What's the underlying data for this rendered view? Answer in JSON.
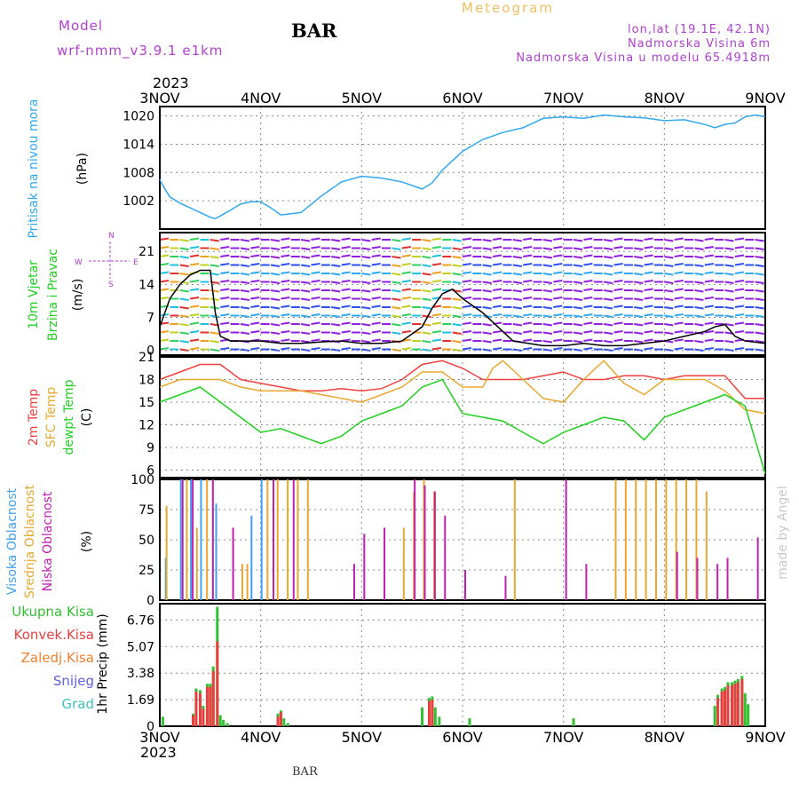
{
  "header": {
    "model_label": "Model",
    "model_name": "wrf-nmm_v3.9.1 e1km",
    "station": "BAR",
    "product": "Meteogram",
    "coords": "lon,lat (19.1E, 42.1N)",
    "elevation": "Nadmorska Visina 6m",
    "model_elevation": "Nadmorska Visina u modelu 65.4918m",
    "year_top": "2023",
    "year_bottom": "2023",
    "footer_station": "BAR",
    "credit": "made by Angel"
  },
  "colors": {
    "pressure": "#30a8f0",
    "t2m": "#f04040",
    "sfc": "#e8a830",
    "dewpt": "#20d020",
    "high_cloud": "#40a0f0",
    "mid_cloud": "#e8a830",
    "low_cloud": "#c020b0",
    "total_precip": "#30c030",
    "conv_precip": "#e84040",
    "frozen": "#f08030",
    "snow": "#6060e0",
    "grad": "#40c0c0",
    "header": "#b040d0"
  },
  "chart_data": [
    {
      "type": "line",
      "title": "Pritisak na nivou mora",
      "ylabel": "(hPa)",
      "yticks": [
        "1020",
        "1014",
        "1008",
        "1002"
      ],
      "ylim": [
        996,
        1022
      ],
      "x_days": [
        "3NOV",
        "4NOV",
        "5NOV",
        "6NOV",
        "7NOV",
        "8NOV",
        "9NOV"
      ],
      "series": [
        {
          "x": [
            0,
            0.05,
            0.1,
            0.2,
            0.3,
            0.4,
            0.5,
            0.55,
            0.7,
            0.8,
            0.9,
            1.0,
            1.1,
            1.2,
            1.4,
            1.6,
            1.8,
            2.0,
            2.2,
            2.4,
            2.6,
            2.7,
            2.8,
            2.9,
            3.0,
            3.2,
            3.4,
            3.6,
            3.8,
            4.0,
            4.2,
            4.4,
            4.6,
            4.8,
            5.0,
            5.2,
            5.4,
            5.5,
            5.6,
            5.7,
            5.8,
            5.9,
            6.0
          ],
          "y": [
            1006.5,
            1004.5,
            1002.8,
            1001.5,
            1000.5,
            999.5,
            998.5,
            998.2,
            1000,
            1001.3,
            1001.8,
            1001.8,
            1000.5,
            999,
            999.5,
            1003,
            1006,
            1007.2,
            1006.8,
            1006,
            1004.5,
            1005.8,
            1008.5,
            1010.5,
            1012.5,
            1015,
            1016.5,
            1017.5,
            1019.5,
            1019.8,
            1019.5,
            1020.2,
            1019.8,
            1019.6,
            1019,
            1019.2,
            1018.2,
            1017.5,
            1018.2,
            1018.5,
            1019.8,
            1020.2,
            1019.8
          ]
        }
      ]
    },
    {
      "type": "line",
      "title": "10m Vjetar",
      "subtitle": "Brzina i Pravac",
      "ylabel": "(m/s)",
      "compass": [
        "N",
        "W",
        "E",
        "S"
      ],
      "yticks": [
        "21",
        "14",
        "7",
        "0"
      ],
      "ylim": [
        -1,
        25
      ],
      "series": [
        {
          "x": [
            0,
            0.1,
            0.2,
            0.3,
            0.4,
            0.5,
            0.55,
            0.6,
            0.7,
            0.8,
            1.0,
            1.2,
            1.4,
            1.6,
            1.8,
            2.0,
            2.2,
            2.4,
            2.6,
            2.7,
            2.8,
            2.9,
            3.0,
            3.2,
            3.5,
            3.8,
            4.0,
            4.2,
            4.4,
            4.6,
            4.8,
            5.0,
            5.2,
            5.4,
            5.5,
            5.6,
            5.7,
            5.8,
            6.0
          ],
          "y": [
            5,
            11,
            14,
            16,
            17,
            17,
            8,
            3,
            2,
            2,
            2,
            1.5,
            1.5,
            1.8,
            2,
            1.5,
            1.5,
            2,
            5,
            9,
            12,
            13,
            11,
            8,
            2,
            1,
            1,
            1.5,
            1,
            1,
            1.5,
            2,
            3,
            4,
            5,
            5.5,
            3,
            2,
            1.5
          ]
        }
      ]
    },
    {
      "type": "line",
      "ylabels": [
        "2m Temp",
        "SFC Temp",
        "dewpt Temp"
      ],
      "unit": "(C)",
      "yticks": [
        "21",
        "18",
        "15",
        "12",
        "9",
        "6"
      ],
      "ylim": [
        5,
        21
      ],
      "series": [
        {
          "x": [
            0,
            0.2,
            0.4,
            0.6,
            0.8,
            1.0,
            1.2,
            1.4,
            1.6,
            1.8,
            2.0,
            2.2,
            2.4,
            2.6,
            2.8,
            3.0,
            3.2,
            3.4,
            3.6,
            3.8,
            4.0,
            4.2,
            4.4,
            4.6,
            4.8,
            5.0,
            5.2,
            5.4,
            5.6,
            5.8,
            6.0
          ],
          "y": [
            18,
            19,
            20,
            20,
            18,
            17.5,
            17,
            16.5,
            16.5,
            16.8,
            16.5,
            16.8,
            18,
            20,
            20.5,
            19.5,
            18,
            18,
            18,
            18.5,
            19,
            18,
            18,
            18.5,
            18.5,
            18,
            18.5,
            18.5,
            18.5,
            15.5,
            15.5
          ]
        },
        {
          "x": [
            0,
            0.2,
            0.4,
            0.6,
            0.8,
            1.0,
            1.2,
            1.4,
            1.6,
            1.8,
            2.0,
            2.2,
            2.4,
            2.6,
            2.8,
            3.0,
            3.2,
            3.3,
            3.4,
            3.6,
            3.8,
            4.0,
            4.2,
            4.4,
            4.6,
            4.8,
            5.0,
            5.2,
            5.4,
            5.6,
            5.8,
            6.0
          ],
          "y": [
            17,
            18,
            18,
            18,
            17,
            16.5,
            16.5,
            16.5,
            16,
            15.5,
            15,
            16,
            17,
            19,
            19,
            17,
            17,
            19.5,
            20.5,
            18,
            15.5,
            15,
            18,
            20.5,
            17.5,
            16,
            18,
            18,
            18,
            16.5,
            14,
            13.5
          ]
        },
        {
          "x": [
            0,
            0.2,
            0.4,
            0.6,
            0.8,
            1.0,
            1.2,
            1.4,
            1.6,
            1.8,
            2.0,
            2.2,
            2.4,
            2.6,
            2.8,
            3.0,
            3.2,
            3.4,
            3.6,
            3.8,
            4.0,
            4.2,
            4.4,
            4.6,
            4.8,
            5.0,
            5.2,
            5.4,
            5.6,
            5.8,
            6.0
          ],
          "y": [
            15,
            16,
            17,
            15,
            13,
            11,
            11.5,
            10.5,
            9.5,
            10.5,
            12.5,
            13.5,
            14.5,
            17,
            18,
            13.5,
            13,
            12.5,
            11,
            9.5,
            11,
            12,
            13,
            12.5,
            10,
            13,
            14,
            15,
            16,
            14.5,
            5.5
          ]
        }
      ]
    },
    {
      "type": "bar",
      "ylabels": [
        "Visoka Oblacnost",
        "Srednja Oblacnost",
        "Niska Oblacnost"
      ],
      "unit": "(%)",
      "yticks": [
        "100",
        "75",
        "50",
        "25",
        "0"
      ],
      "ylim": [
        0,
        100
      ],
      "series": [
        {
          "x": [
            0.05,
            0.2,
            0.3,
            0.4,
            0.55,
            0.9,
            1.0
          ],
          "y": [
            35,
            100,
            100,
            100,
            80,
            70,
            100
          ]
        },
        {
          "x": [
            0.05,
            0.25,
            0.35,
            0.45,
            0.8,
            0.85,
            1.05,
            1.15,
            1.25,
            1.35,
            1.45,
            2.4,
            2.5,
            2.6,
            2.7,
            3.5,
            4.5,
            4.6,
            4.7,
            4.8,
            4.9,
            5.0,
            5.1,
            5.2,
            5.3,
            5.4
          ],
          "y": [
            78,
            100,
            60,
            100,
            30,
            30,
            100,
            100,
            100,
            100,
            100,
            60,
            90,
            100,
            90,
            100,
            100,
            100,
            100,
            100,
            100,
            100,
            100,
            100,
            100,
            90
          ]
        },
        {
          "x": [
            0.2,
            0.3,
            0.5,
            0.7,
            1.1,
            1.3,
            1.9,
            2.0,
            2.2,
            2.5,
            2.6,
            2.7,
            2.8,
            3.0,
            3.4,
            4.0,
            4.2,
            5.1,
            5.3,
            5.5,
            5.6,
            5.9
          ],
          "y": [
            100,
            100,
            100,
            60,
            100,
            100,
            30,
            55,
            60,
            100,
            95,
            90,
            70,
            25,
            20,
            100,
            30,
            40,
            35,
            30,
            35,
            52
          ]
        }
      ]
    },
    {
      "type": "bar",
      "ylabels": [
        "Ukupna Kisa",
        "Konvek.Kisa",
        "Zaledj.Kisa",
        "Snijeg",
        "Grad"
      ],
      "ylabel": "1hr Precip (mm)",
      "yticks": [
        "6.76",
        "5.07",
        "3.38",
        "1.69",
        "0"
      ],
      "ylim": [
        0,
        7.8
      ],
      "series": [
        {
          "x": [
            0.03,
            0.33,
            0.36,
            0.4,
            0.43,
            0.47,
            0.5,
            0.53,
            0.57,
            0.6,
            0.63,
            0.67,
            1.17,
            1.2,
            1.23,
            1.27,
            2.6,
            2.67,
            2.7,
            2.73,
            2.77,
            3.07,
            4.1,
            5.5,
            5.53,
            5.57,
            5.6,
            5.63,
            5.67,
            5.7,
            5.73,
            5.77,
            5.8,
            5.83
          ],
          "y": [
            0.6,
            0.8,
            2.4,
            2.3,
            1.3,
            2.7,
            2.7,
            3.8,
            7.6,
            0.7,
            0.4,
            0.2,
            0.8,
            1.0,
            0.5,
            0.2,
            1.2,
            1.8,
            1.9,
            1.2,
            0.6,
            0.5,
            0.5,
            1.3,
            2.0,
            2.4,
            2.5,
            2.8,
            2.8,
            2.9,
            3.0,
            3.2,
            2.1,
            1.4
          ]
        },
        {
          "x": [
            0.33,
            0.36,
            0.4,
            0.43,
            0.47,
            0.5,
            0.53,
            0.57,
            1.17,
            1.2,
            2.67,
            2.7,
            5.53,
            5.57,
            5.6,
            5.63,
            5.67,
            5.7,
            5.73,
            5.77
          ],
          "y": [
            0.7,
            2.2,
            2.1,
            1.1,
            2.5,
            2.5,
            3.5,
            5.4,
            0.6,
            0.9,
            1.6,
            1.7,
            1.8,
            2.2,
            2.3,
            2.6,
            2.6,
            2.7,
            2.8,
            3.0
          ]
        }
      ]
    }
  ]
}
